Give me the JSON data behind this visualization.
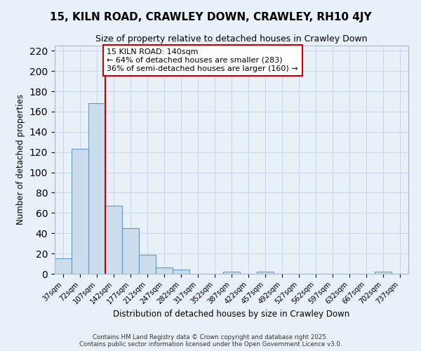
{
  "title": "15, KILN ROAD, CRAWLEY DOWN, CRAWLEY, RH10 4JY",
  "subtitle": "Size of property relative to detached houses in Crawley Down",
  "xlabel": "Distribution of detached houses by size in Crawley Down",
  "ylabel": "Number of detached properties",
  "bar_labels": [
    "37sqm",
    "72sqm",
    "107sqm",
    "142sqm",
    "177sqm",
    "212sqm",
    "247sqm",
    "282sqm",
    "317sqm",
    "352sqm",
    "387sqm",
    "422sqm",
    "457sqm",
    "492sqm",
    "527sqm",
    "562sqm",
    "597sqm",
    "632sqm",
    "667sqm",
    "702sqm",
    "737sqm"
  ],
  "bar_values": [
    15,
    123,
    168,
    67,
    45,
    19,
    6,
    4,
    0,
    0,
    2,
    0,
    2,
    0,
    0,
    0,
    0,
    0,
    0,
    2,
    0
  ],
  "bar_color": "#ccdded",
  "bar_edge_color": "#6699bb",
  "vline_color": "#cc0000",
  "annotation_text": "15 KILN ROAD: 140sqm\n← 64% of detached houses are smaller (283)\n36% of semi-detached houses are larger (160) →",
  "annotation_box_color": "white",
  "annotation_box_edge": "#cc0000",
  "ylim": [
    0,
    225
  ],
  "yticks": [
    0,
    20,
    40,
    60,
    80,
    100,
    120,
    140,
    160,
    180,
    200,
    220
  ],
  "grid_color": "#c8d8e8",
  "bg_color": "#e8f0f8",
  "footer_line1": "Contains HM Land Registry data © Crown copyright and database right 2025.",
  "footer_line2": "Contains public sector information licensed under the Open Government Licence v3.0."
}
